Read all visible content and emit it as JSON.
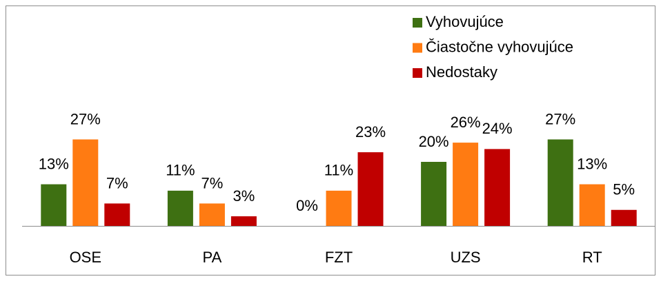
{
  "chart_data": {
    "type": "bar",
    "categories": [
      "OSE",
      "PA",
      "FZT",
      "UZS",
      "RT"
    ],
    "series": [
      {
        "name": "Vyhovujúce",
        "color": "#3e7012",
        "values": [
          13,
          11,
          0,
          20,
          27
        ],
        "value_labels": [
          "13%",
          "11%",
          "0%",
          "20%",
          "27%"
        ]
      },
      {
        "name": "Čiastočne vyhovujúce",
        "color": "#ff7b12",
        "values": [
          27,
          7,
          11,
          26,
          13
        ],
        "value_labels": [
          "27%",
          "7%",
          "11%",
          "26%",
          "13%"
        ]
      },
      {
        "name": "Nedostaky",
        "color": "#c00000",
        "values": [
          7,
          3,
          23,
          24,
          5
        ],
        "value_labels": [
          "7%",
          "3%",
          "23%",
          "24%",
          "5%"
        ]
      }
    ],
    "legend": "top-right"
  }
}
